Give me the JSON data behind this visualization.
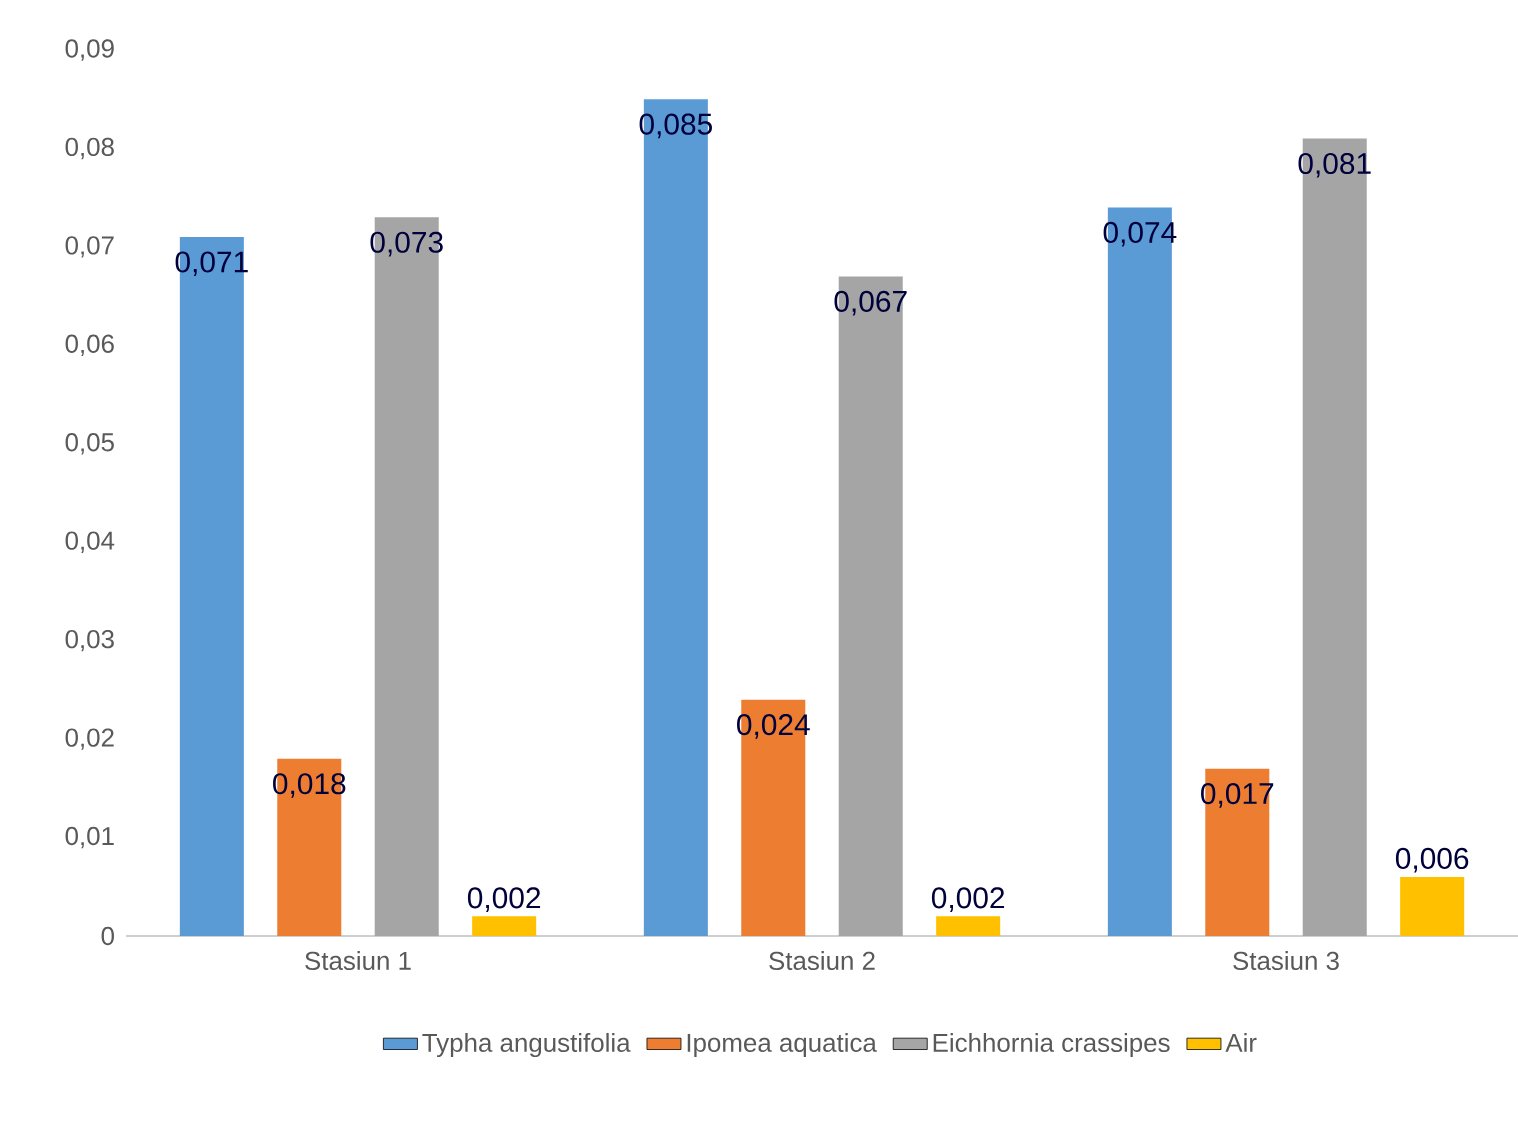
{
  "chart_data": {
    "type": "bar",
    "categories": [
      "Stasiun 1",
      "Stasiun 2",
      "Stasiun 3"
    ],
    "series": [
      {
        "name": "Typha angustifolia",
        "color": "#5b9bd5",
        "values": [
          0.071,
          0.085,
          0.074
        ],
        "value_labels": [
          "0,071",
          "0,085",
          "0,074"
        ]
      },
      {
        "name": "Ipomea aquatica",
        "color": "#ed7d31",
        "values": [
          0.018,
          0.024,
          0.017
        ],
        "value_labels": [
          "0,018",
          "0,024",
          "0,017"
        ]
      },
      {
        "name": "Eichhornia crassipes",
        "color": "#a5a5a5",
        "values": [
          0.073,
          0.067,
          0.081
        ],
        "value_labels": [
          "0,073",
          "0,067",
          "0,081"
        ]
      },
      {
        "name": "Air",
        "color": "#ffc000",
        "values": [
          0.002,
          0.002,
          0.006
        ],
        "value_labels": [
          "0,002",
          "0,002",
          "0,006"
        ]
      }
    ],
    "ylim": [
      0,
      0.09
    ],
    "yticks": [
      0,
      {
        "value": 0.01,
        "label": "0,01"
      },
      {
        "value": 0.02,
        "label": "0,02"
      },
      {
        "value": 0.03,
        "label": "0,03"
      },
      {
        "value": 0.04,
        "label": "0,04"
      },
      {
        "value": 0.05,
        "label": "0,05"
      },
      {
        "value": 0.06,
        "label": "0,06"
      },
      {
        "value": 0.07,
        "label": "0,07"
      },
      {
        "value": 0.08,
        "label": "0,08"
      },
      {
        "value": 0.09,
        "label": "0,09"
      }
    ],
    "grid": false,
    "legend": "bottom"
  }
}
